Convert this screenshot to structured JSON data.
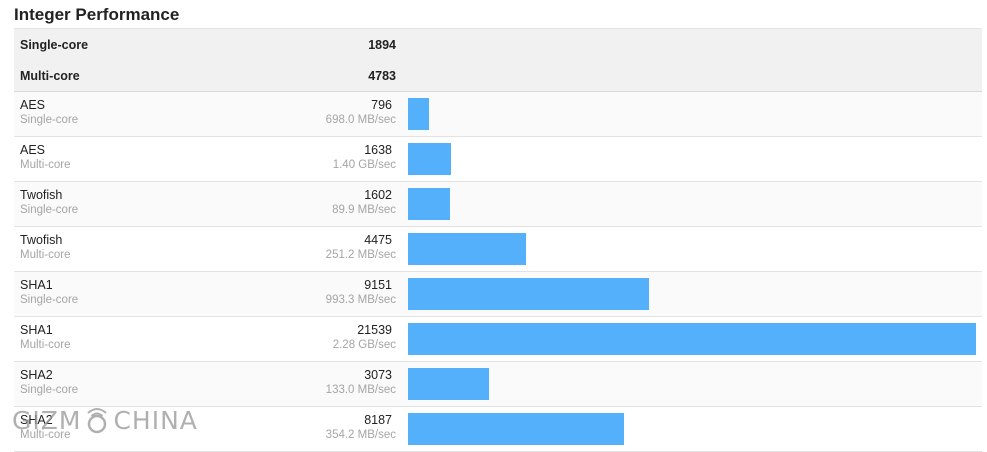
{
  "title": "Integer Performance",
  "summary": [
    {
      "label": "Single-core",
      "score": "1894"
    },
    {
      "label": "Multi-core",
      "score": "4783"
    }
  ],
  "chart_data": {
    "type": "bar",
    "orientation": "horizontal",
    "title": "Integer Performance",
    "xlim": [
      0,
      21539
    ],
    "rows": [
      {
        "name": "AES",
        "mode": "Single-core",
        "score": 796,
        "score_label": "796",
        "rate": "698.0 MB/sec"
      },
      {
        "name": "AES",
        "mode": "Multi-core",
        "score": 1638,
        "score_label": "1638",
        "rate": "1.40 GB/sec"
      },
      {
        "name": "Twofish",
        "mode": "Single-core",
        "score": 1602,
        "score_label": "1602",
        "rate": "89.9 MB/sec"
      },
      {
        "name": "Twofish",
        "mode": "Multi-core",
        "score": 4475,
        "score_label": "4475",
        "rate": "251.2 MB/sec"
      },
      {
        "name": "SHA1",
        "mode": "Single-core",
        "score": 9151,
        "score_label": "9151",
        "rate": "993.3 MB/sec"
      },
      {
        "name": "SHA1",
        "mode": "Multi-core",
        "score": 21539,
        "score_label": "21539",
        "rate": "2.28 GB/sec"
      },
      {
        "name": "SHA2",
        "mode": "Single-core",
        "score": 3073,
        "score_label": "3073",
        "rate": "133.0 MB/sec"
      },
      {
        "name": "SHA2",
        "mode": "Multi-core",
        "score": 8187,
        "score_label": "8187",
        "rate": "354.2 MB/sec"
      }
    ]
  },
  "colors": {
    "bar": "#54b0fb",
    "summary_bg": "#f1f1f1"
  },
  "watermark": {
    "left": "GIZM",
    "right": "CHINA"
  }
}
